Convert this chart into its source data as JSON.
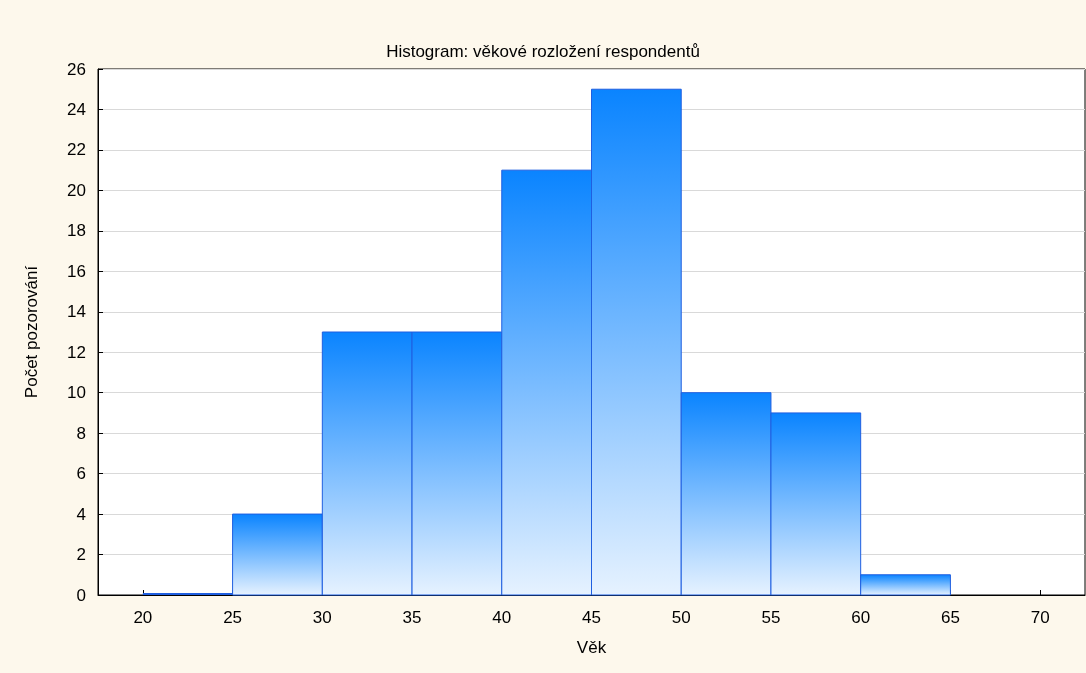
{
  "chart_data": {
    "type": "histogram",
    "title": "Histogram: věkové rozložení respondentů",
    "xlabel": "Věk",
    "ylabel": "Počet pozorování",
    "bins": [
      20,
      25,
      30,
      35,
      40,
      45,
      50,
      55,
      60,
      65
    ],
    "values": [
      0,
      4,
      13,
      13,
      21,
      25,
      10,
      9,
      1
    ],
    "color": "#1f5fe0",
    "xlim": [
      17.5,
      72.5
    ],
    "xticks": [
      20,
      25,
      30,
      35,
      40,
      45,
      50,
      55,
      60,
      65,
      70
    ],
    "ylim": [
      0,
      26
    ],
    "yticks": [
      0,
      2,
      4,
      6,
      8,
      10,
      12,
      14,
      16,
      18,
      20,
      22,
      24,
      26
    ],
    "grid": "y"
  }
}
